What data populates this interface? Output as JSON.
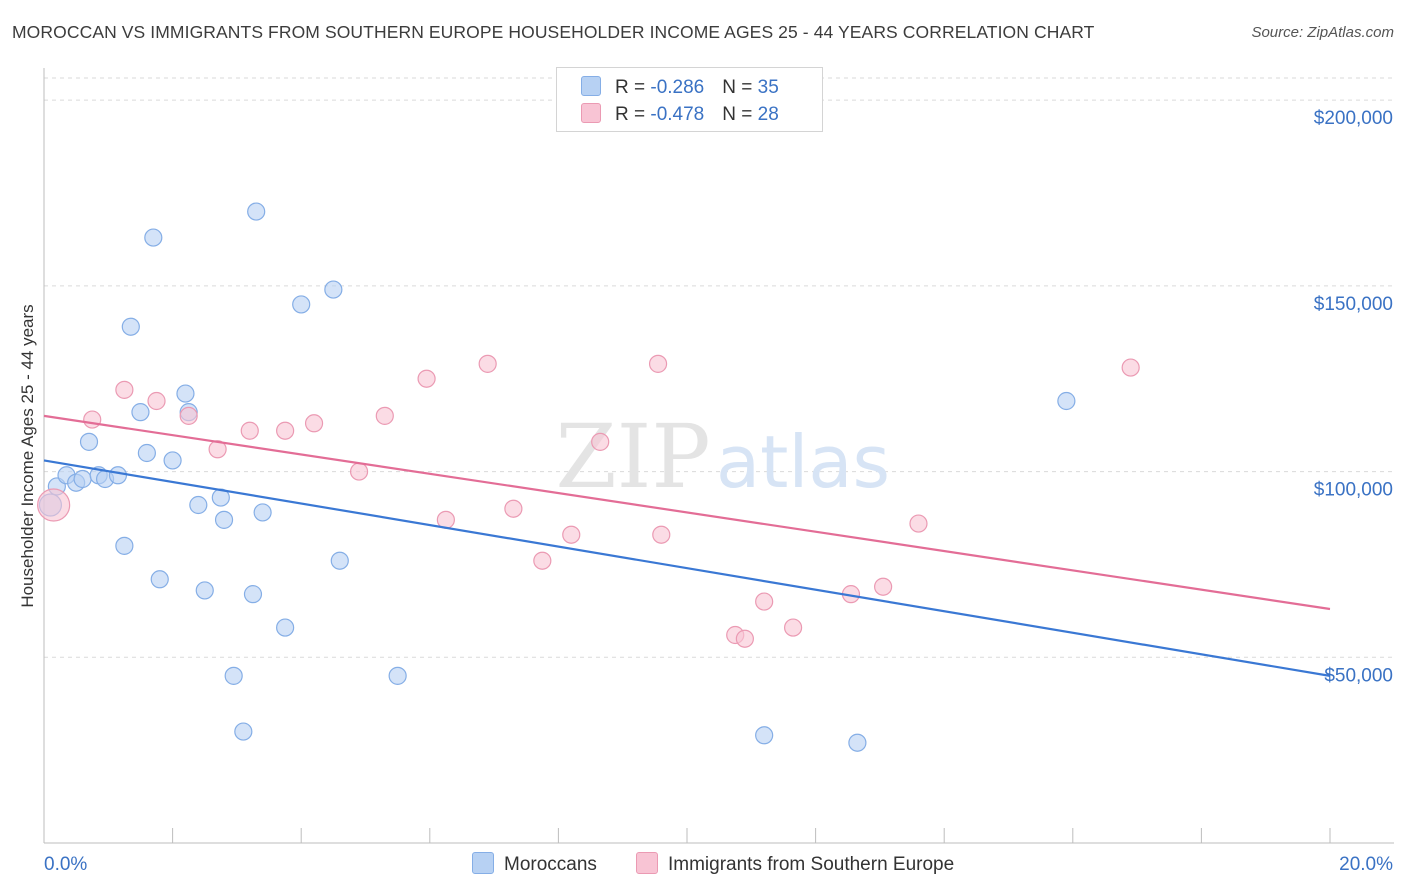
{
  "title": "MOROCCAN VS IMMIGRANTS FROM SOUTHERN EUROPE HOUSEHOLDER INCOME AGES 25 - 44 YEARS CORRELATION CHART",
  "source": "Source: ZipAtlas.com",
  "watermark": {
    "zip": "ZIP",
    "atlas": "atlas"
  },
  "legend": {
    "rows": [
      {
        "r_label": "R = ",
        "r_value": "-0.286",
        "n_label": "N = ",
        "n_value": "35"
      },
      {
        "r_label": "R = ",
        "r_value": "-0.478",
        "n_label": "N = ",
        "n_value": "28"
      }
    ]
  },
  "colors": {
    "blue_fill": "#b7d1f3",
    "blue_stroke": "#85aee6",
    "blue_line": "#3a78d4",
    "pink_fill": "#f8c4d4",
    "pink_stroke": "#eb9ab3",
    "pink_line": "#e36d96",
    "grid": "#dadada",
    "tick_text": "#3a72c4"
  },
  "chart_data": {
    "type": "scatter",
    "xlabel": "",
    "ylabel": "Householder Income Ages 25 - 44 years",
    "xlim": [
      0,
      20
    ],
    "ylim": [
      0,
      210000
    ],
    "x_tick_labels": [
      "0.0%",
      "20.0%"
    ],
    "y_ticks": [
      {
        "value": 50000,
        "label": "$50,000"
      },
      {
        "value": 100000,
        "label": "$100,000"
      },
      {
        "value": 150000,
        "label": "$150,000"
      },
      {
        "value": 200000,
        "label": "$200,000"
      }
    ],
    "series": [
      {
        "name": "Moroccans",
        "points": [
          [
            0.1,
            91000
          ],
          [
            0.2,
            96000
          ],
          [
            0.35,
            99000
          ],
          [
            0.5,
            97000
          ],
          [
            0.6,
            98000
          ],
          [
            0.7,
            108000
          ],
          [
            0.85,
            99000
          ],
          [
            0.95,
            98000
          ],
          [
            1.15,
            99000
          ],
          [
            1.25,
            80000
          ],
          [
            1.35,
            139000
          ],
          [
            1.5,
            116000
          ],
          [
            1.6,
            105000
          ],
          [
            1.7,
            163000
          ],
          [
            1.8,
            71000
          ],
          [
            2.0,
            103000
          ],
          [
            2.2,
            121000
          ],
          [
            2.25,
            116000
          ],
          [
            2.4,
            91000
          ],
          [
            2.5,
            68000
          ],
          [
            2.75,
            93000
          ],
          [
            2.8,
            87000
          ],
          [
            2.95,
            45000
          ],
          [
            3.1,
            30000
          ],
          [
            3.25,
            67000
          ],
          [
            3.3,
            170000
          ],
          [
            3.4,
            89000
          ],
          [
            3.75,
            58000
          ],
          [
            4.0,
            145000
          ],
          [
            4.5,
            149000
          ],
          [
            4.6,
            76000
          ],
          [
            5.5,
            45000
          ],
          [
            11.2,
            29000
          ],
          [
            12.65,
            27000
          ],
          [
            15.9,
            119000
          ]
        ],
        "trend": {
          "x0": 0,
          "y0": 103000,
          "x1": 20,
          "y1": 45000
        }
      },
      {
        "name": "Immigrants from Southern Europe",
        "points": [
          [
            0.15,
            91000
          ],
          [
            0.75,
            114000
          ],
          [
            1.25,
            122000
          ],
          [
            1.75,
            119000
          ],
          [
            2.25,
            115000
          ],
          [
            2.7,
            106000
          ],
          [
            3.2,
            111000
          ],
          [
            3.75,
            111000
          ],
          [
            4.2,
            113000
          ],
          [
            4.9,
            100000
          ],
          [
            5.3,
            115000
          ],
          [
            5.95,
            125000
          ],
          [
            6.25,
            87000
          ],
          [
            6.9,
            129000
          ],
          [
            7.3,
            90000
          ],
          [
            7.75,
            76000
          ],
          [
            8.2,
            83000
          ],
          [
            8.65,
            108000
          ],
          [
            9.55,
            129000
          ],
          [
            9.6,
            83000
          ],
          [
            10.75,
            56000
          ],
          [
            10.9,
            55000
          ],
          [
            11.2,
            65000
          ],
          [
            11.65,
            58000
          ],
          [
            12.55,
            67000
          ],
          [
            13.05,
            69000
          ],
          [
            13.6,
            86000
          ],
          [
            16.9,
            128000
          ]
        ],
        "trend": {
          "x0": 0,
          "y0": 115000,
          "x1": 20,
          "y1": 63000
        }
      }
    ],
    "grid": true,
    "legend_position": "top-center"
  }
}
